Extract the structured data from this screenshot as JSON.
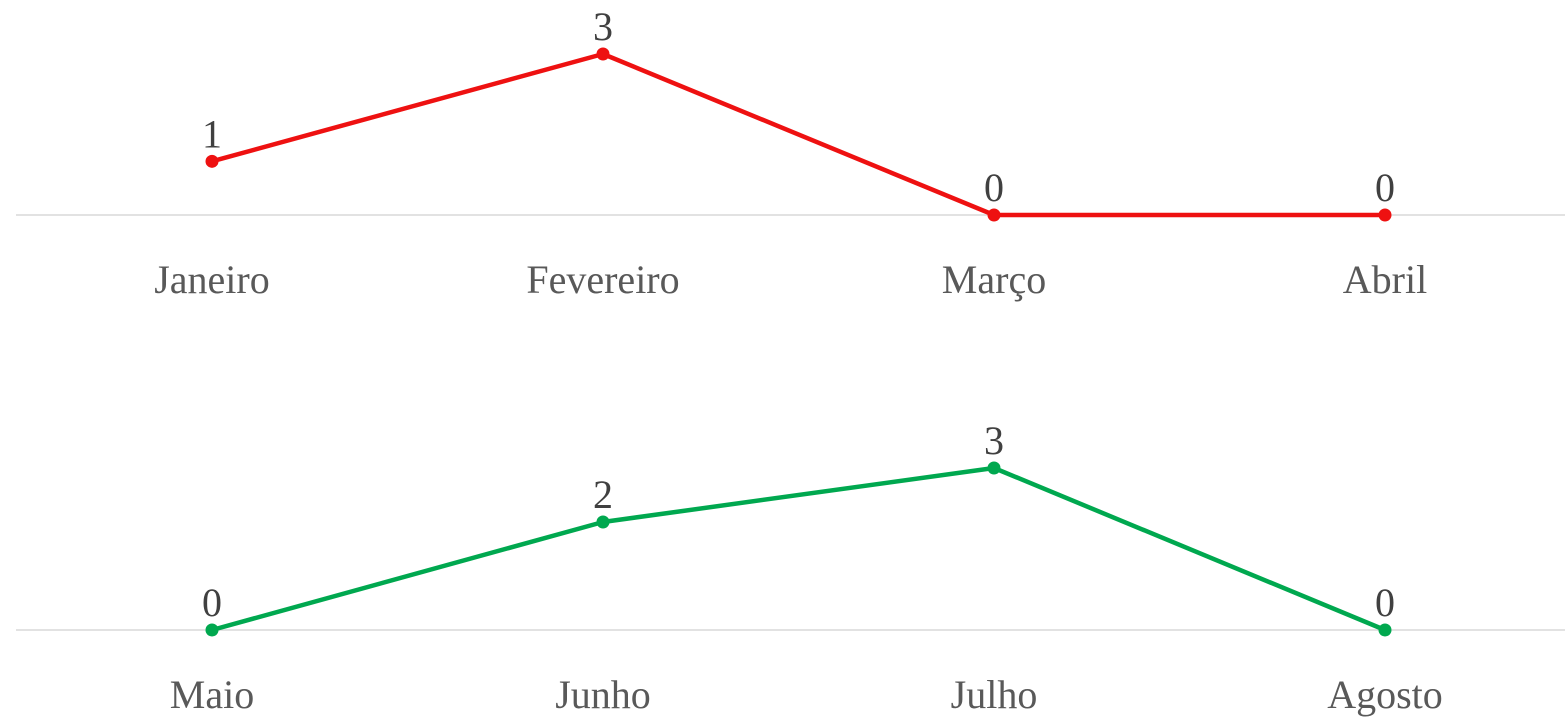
{
  "chart_data": [
    {
      "type": "line",
      "categories": [
        "Janeiro",
        "Fevereiro",
        "Março",
        "Abril"
      ],
      "values": [
        1,
        3,
        0,
        0
      ],
      "color": "#ee1111",
      "ylim": [
        0,
        3
      ]
    },
    {
      "type": "line",
      "categories": [
        "Maio",
        "Junho",
        "Julho",
        "Agosto"
      ],
      "values": [
        0,
        2,
        3,
        0
      ],
      "color": "#00a84f",
      "ylim": [
        0,
        3
      ]
    }
  ]
}
